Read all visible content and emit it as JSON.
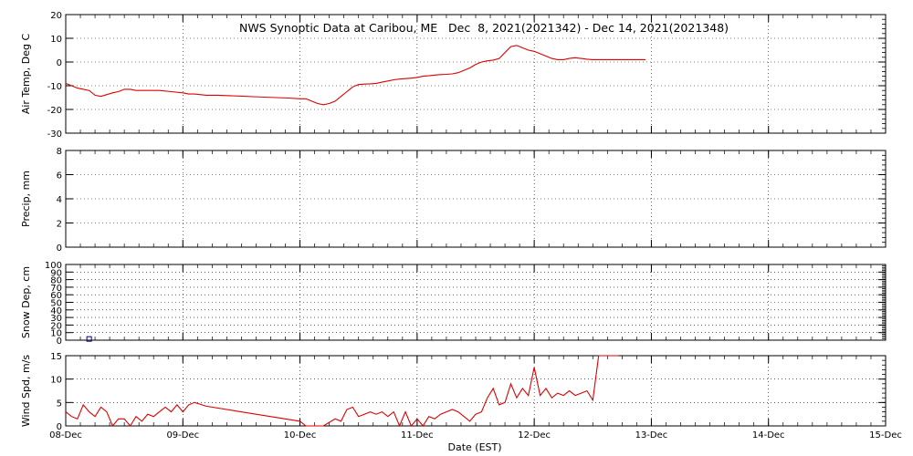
{
  "title": "NWS Synoptic Data at Caribou, ME   Dec  8, 2021(2021342) - Dec 14, 2021(2021348)",
  "xlabel": "Date (EST)",
  "colors": {
    "series": "#dd0000",
    "snow_marker": "#000080",
    "axes": "#000000",
    "grid": "#000000"
  },
  "chart_data": [
    {
      "type": "line",
      "ylabel": "Air Temp, Deg C",
      "ylim": [
        -30,
        20
      ],
      "yticks": [
        "-30",
        "-20",
        "-10",
        "0",
        "10",
        "20"
      ],
      "grid": true,
      "series": [
        {
          "x": [
            0,
            0.1,
            0.2,
            0.25,
            0.3,
            0.4,
            0.45,
            0.5,
            0.55,
            0.6,
            0.65,
            0.7,
            0.75,
            0.8,
            0.9,
            1.0,
            1.05,
            1.1,
            1.2,
            1.3,
            1.4,
            1.5,
            1.6,
            1.7,
            1.8,
            1.9,
            2.0,
            2.05,
            2.1,
            2.15,
            2.2,
            2.25,
            2.3,
            2.35,
            2.4,
            2.45,
            2.5,
            2.55,
            2.6,
            2.65,
            2.7,
            2.75,
            2.8,
            2.85,
            2.9,
            2.95,
            3.0,
            3.05,
            3.1,
            3.15,
            3.2,
            3.25,
            3.3,
            3.35,
            3.4,
            3.45,
            3.5,
            3.55,
            3.6,
            3.65,
            3.7,
            3.75,
            3.8,
            3.85,
            3.9,
            3.95,
            4.0,
            4.05,
            4.1,
            4.15,
            4.2,
            4.25,
            4.3,
            4.35,
            4.4,
            4.45,
            4.5,
            4.55,
            4.6,
            4.65,
            4.7,
            4.75,
            4.8,
            4.85,
            4.9,
            4.95
          ],
          "y": [
            -9,
            -11,
            -12,
            -14,
            -14.5,
            -13,
            -12.5,
            -11.5,
            -11.5,
            -12,
            -12,
            -12,
            -12,
            -12,
            -12.5,
            -13,
            -13.5,
            -13.5,
            -14,
            -14,
            -14.2,
            -14.4,
            -14.6,
            -14.8,
            -15,
            -15.2,
            -15.5,
            -15.5,
            -16.5,
            -17.5,
            -18,
            -17.5,
            -16.5,
            -14.5,
            -12.5,
            -10.5,
            -9.5,
            -9.3,
            -9.2,
            -9,
            -8.5,
            -8,
            -7.5,
            -7.2,
            -7,
            -6.8,
            -6.5,
            -6,
            -5.8,
            -5.5,
            -5.3,
            -5.2,
            -5,
            -4.5,
            -3.5,
            -2.5,
            -1,
            0,
            0.5,
            0.8,
            1.5,
            4,
            6.5,
            7,
            6,
            5,
            4.5,
            3.5,
            2.5,
            1.5,
            1,
            1,
            1.5,
            1.8,
            1.5,
            1.2,
            1,
            1,
            1,
            1,
            1,
            1,
            1,
            1,
            1,
            1
          ]
        }
      ]
    },
    {
      "type": "bar",
      "ylabel": "Precip, mm",
      "ylim": [
        0,
        8
      ],
      "yticks": [
        "0",
        "2",
        "4",
        "6",
        "8"
      ],
      "grid": true,
      "values": []
    },
    {
      "type": "scatter",
      "ylabel": "Snow Dep, cm",
      "ylim": [
        0,
        100
      ],
      "yticks": [
        "0",
        "10",
        "20",
        "30",
        "40",
        "50",
        "60",
        "70",
        "80",
        "90",
        "100"
      ],
      "grid": true,
      "points": [
        {
          "x": 0.2,
          "y": 1
        }
      ]
    },
    {
      "type": "line",
      "ylabel": "Wind Spd, m/s",
      "ylim": [
        0,
        15
      ],
      "yticks": [
        "0",
        "5",
        "10",
        "15"
      ],
      "grid": true,
      "series": [
        {
          "x": [
            0,
            0.05,
            0.1,
            0.15,
            0.2,
            0.25,
            0.3,
            0.35,
            0.4,
            0.45,
            0.5,
            0.55,
            0.6,
            0.65,
            0.7,
            0.75,
            0.8,
            0.85,
            0.9,
            0.95,
            1.0,
            1.05,
            1.1,
            1.2,
            2.0,
            2.05,
            2.1,
            2.2,
            2.3,
            2.35,
            2.4,
            2.45,
            2.5,
            2.55,
            2.6,
            2.65,
            2.7,
            2.75,
            2.8,
            2.85,
            2.9,
            2.95,
            3.0,
            3.05,
            3.1,
            3.15,
            3.2,
            3.25,
            3.3,
            3.35,
            3.4,
            3.45,
            3.5,
            3.55,
            3.6,
            3.65,
            3.7,
            3.75,
            3.8,
            3.85,
            3.9,
            3.95,
            4.0,
            4.05,
            4.1,
            4.15,
            4.2,
            4.25,
            4.3,
            4.35,
            4.4,
            4.45,
            4.5,
            4.55,
            4.6,
            4.65,
            4.7,
            4.72
          ],
          "y": [
            3,
            2,
            1.5,
            4.5,
            3,
            2,
            4,
            3,
            0,
            1.5,
            1.5,
            0,
            2,
            1,
            2.5,
            2,
            3,
            4,
            3,
            4.5,
            3,
            4.5,
            5,
            4.2,
            1,
            0,
            0,
            0,
            1.5,
            1,
            3.5,
            4,
            2,
            2.5,
            3,
            2.5,
            3,
            2,
            3,
            0,
            3,
            0,
            1.5,
            0,
            2,
            1.5,
            2.5,
            3,
            3.5,
            3,
            2,
            1,
            2.5,
            3,
            6,
            8,
            4.5,
            5,
            9,
            6,
            8,
            6.5,
            12.5,
            6.5,
            8,
            6,
            7,
            6.5,
            7.5,
            6.5,
            7,
            7.5,
            5.5,
            15,
            15,
            15,
            15,
            15
          ]
        }
      ]
    }
  ],
  "xaxis": {
    "ticks": [
      "08-Dec",
      "09-Dec",
      "10-Dec",
      "11-Dec",
      "12-Dec",
      "13-Dec",
      "14-Dec",
      "15-Dec"
    ],
    "range_days": [
      0,
      7
    ]
  }
}
